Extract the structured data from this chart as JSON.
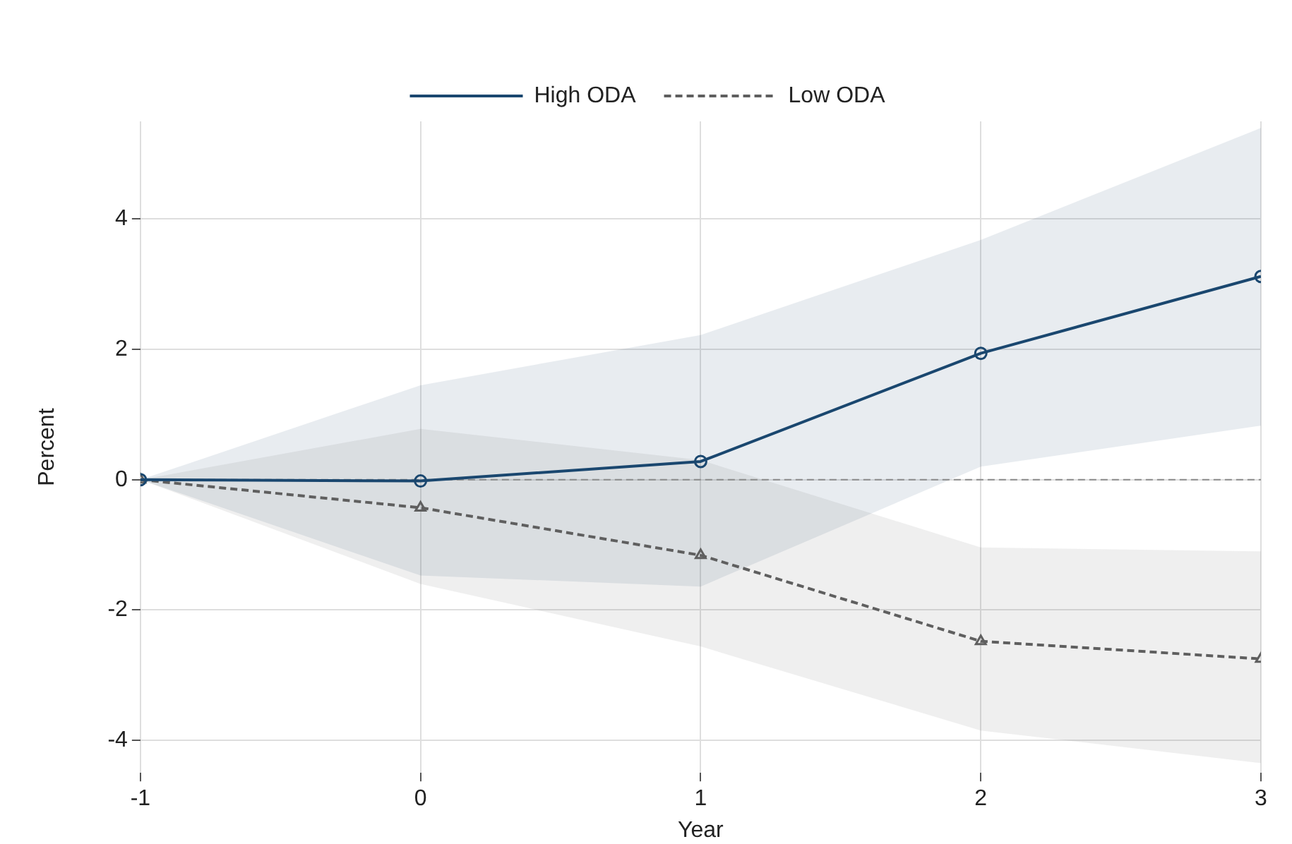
{
  "chart_data": {
    "type": "line",
    "xlabel": "Year",
    "ylabel": "Percent",
    "x": [
      -1,
      0,
      1,
      2,
      3
    ],
    "series": [
      {
        "name": "High ODA",
        "color": "#1a476f",
        "values": [
          0,
          -0.02,
          0.28,
          1.94,
          3.12
        ],
        "lower": [
          0,
          -1.47,
          -1.64,
          0.2,
          0.83
        ],
        "upper": [
          0,
          1.45,
          2.22,
          3.68,
          5.4
        ],
        "marker": "circle",
        "line_style": "solid"
      },
      {
        "name": "Low ODA",
        "color": "#5f5f5f",
        "values": [
          0,
          -0.43,
          -1.16,
          -2.48,
          -2.75
        ],
        "lower": [
          0,
          -1.6,
          -2.56,
          -3.85,
          -4.35
        ],
        "upper": [
          0,
          0.78,
          0.3,
          -1.04,
          -1.1
        ],
        "marker": "triangle",
        "line_style": "dashed"
      }
    ],
    "xlim": [
      -1,
      3
    ],
    "xticks": [
      -1,
      0,
      1,
      2,
      3
    ],
    "ylim": [
      -4.5,
      5.5
    ],
    "yticks": [
      -4,
      -2,
      0,
      2,
      4
    ],
    "ref_lines": [
      {
        "axis": "y",
        "value": 0,
        "color": "#8c8c8c",
        "line_style": "dashed"
      }
    ],
    "grid": true,
    "legend": "top"
  }
}
